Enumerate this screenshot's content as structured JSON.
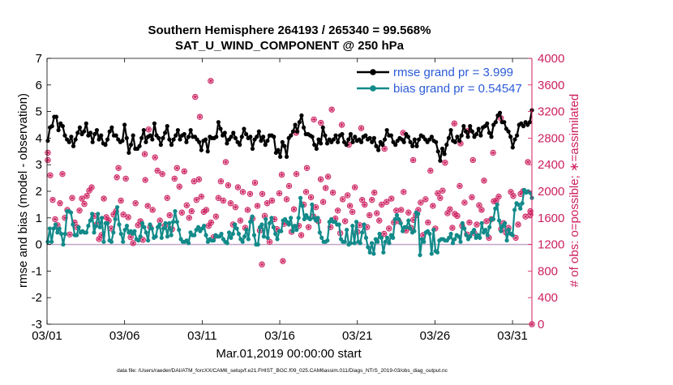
{
  "chart_data": {
    "type": "line",
    "title_line1": "Southern Hemisphere 264193 / 265340 = 99.568%",
    "title_line2": "SAT_U_WIND_COMPONENT @ 250 hPa",
    "xlabel": "Mar.01,2019 00:00:00 start",
    "ylabel_left": "rmse and bias (model - observation)",
    "ylabel_right": "# of obs: o=possible; ∗=assimilated",
    "footer": "data file: /Users/raeder/DAI/ATM_forcXX/CAM6_setup/f.e21.FHIST_BGC.f09_025.CAM6assim.011/Diags_NTrS_2019-03/obs_diag_output.nc",
    "xlim": [
      0,
      31.25
    ],
    "ylim_left": [
      -3,
      7
    ],
    "ylim_right": [
      0,
      4000
    ],
    "x_ticks": [
      {
        "value": 0,
        "label": "03/01"
      },
      {
        "value": 5,
        "label": "03/06"
      },
      {
        "value": 10,
        "label": "03/11"
      },
      {
        "value": 15,
        "label": "03/16"
      },
      {
        "value": 20,
        "label": "03/21"
      },
      {
        "value": 25,
        "label": "03/26"
      },
      {
        "value": 30,
        "label": "03/31"
      }
    ],
    "y_ticks_left": [
      "7",
      "6",
      "5",
      "4",
      "3",
      "2",
      "1",
      "0",
      "-1",
      "-2",
      "-3"
    ],
    "y_ticks_right": [
      "4000",
      "3600",
      "3200",
      "2800",
      "2400",
      "2000",
      "1600",
      "1200",
      "800",
      "400",
      "0"
    ],
    "zero_line": 0,
    "legend": [
      {
        "label": "rmse grand pr = 3.999",
        "series": "rmse"
      },
      {
        "label": "bias grand pr = 0.54547",
        "series": "bias"
      }
    ],
    "colors": {
      "rmse": "#000000",
      "bias": "#138a8a",
      "obs": "#cc1f5f",
      "right_axis": "#cc1f5f",
      "legend_text": "#2b5bd7",
      "zero_line": "#c0a6c8"
    },
    "series": [
      {
        "name": "rmse",
        "axis": "left",
        "values": [
          3.9,
          4.4,
          4.45,
          4.8,
          4.8,
          4.3,
          4.55,
          4.45,
          4.1,
          3.95,
          3.85,
          4.05,
          3.7,
          3.95,
          4.2,
          4.4,
          4.15,
          4.25,
          4.55,
          4.1,
          4.2,
          3.85,
          4.15,
          4.3,
          3.95,
          4.1,
          3.8,
          3.75,
          3.95,
          4.25,
          4.4,
          4.1,
          4.1,
          3.95,
          3.85,
          3.9,
          4.5,
          4.0,
          3.45,
          3.75,
          4.1,
          3.6,
          3.6,
          3.7,
          4.0,
          4.3,
          3.85,
          4.05,
          4.1,
          3.95,
          4.55,
          4.1,
          4.0,
          3.75,
          4.0,
          4.2,
          4.45,
          3.95,
          3.75,
          3.95,
          4.1,
          4.3,
          3.95,
          4.1,
          4.15,
          3.85,
          4.05,
          4.3,
          4.05,
          4.05,
          3.95,
          3.85,
          3.55,
          3.9,
          3.95,
          3.5,
          4.05,
          4.0,
          4.0,
          4.05,
          4.6,
          4.35,
          4.1,
          4.2,
          3.8,
          3.95,
          4.05,
          4.2,
          4.0,
          3.85,
          3.75,
          4.05,
          4.35,
          4.15,
          4.0,
          4.05,
          3.6,
          3.95,
          4.05,
          4.25,
          3.9,
          4.05,
          3.75,
          3.9,
          4.1,
          4.1,
          4.05,
          3.45,
          3.55,
          3.3,
          3.85,
          3.7,
          3.3,
          4.0,
          4.1,
          4.25,
          4.5,
          4.25,
          4.6,
          4.85,
          4.4,
          4.15,
          4.15,
          4.1,
          4.05,
          3.75,
          3.6,
          3.95,
          3.8,
          4.4,
          4.1,
          3.8,
          3.95,
          3.85,
          3.95,
          4.1,
          3.85,
          4.1,
          4.15,
          3.85,
          3.75,
          3.95,
          4.15,
          3.85,
          4.05,
          3.9,
          3.95,
          3.85,
          4.05,
          4.1,
          3.95,
          4.0,
          3.85,
          4.0,
          3.7,
          3.55,
          3.85,
          3.75,
          3.95,
          4.3,
          4.1,
          4.1,
          3.85,
          3.75,
          3.9,
          4.0,
          3.95,
          3.85,
          4.15,
          4.05,
          3.85,
          3.7,
          3.95,
          3.7,
          3.95,
          4.1,
          4.05,
          3.95,
          3.85,
          3.95,
          4.05,
          3.9,
          3.85,
          3.5,
          3.15,
          3.6,
          3.4,
          3.75,
          4.0,
          4.3,
          3.9,
          3.85,
          4.05,
          3.9,
          4.1,
          4.45,
          4.25,
          4.05,
          4.45,
          4.25,
          4.05,
          4.15,
          4.35,
          4.1,
          4.4,
          4.45,
          4.55,
          4.2,
          4.05,
          4.5,
          4.6,
          4.85,
          4.95,
          4.6,
          4.6,
          4.35,
          4.25,
          4.05,
          3.65,
          3.95,
          4.1,
          4.5,
          4.55,
          4.45,
          4.6,
          4.5,
          4.6,
          5.05
        ]
      },
      {
        "name": "bias",
        "axis": "left",
        "values": [
          0.1,
          0.6,
          0.1,
          0.6,
          0.75,
          0.45,
          0.6,
          0.4,
          0.0,
          0.4,
          1.25,
          1.25,
          1.2,
          0.75,
          0.35,
          0.35,
          0.65,
          0.45,
          0.5,
          0.45,
          0.45,
          0.7,
          0.9,
          1.15,
          0.45,
          0.7,
          1.15,
          0.65,
          1.0,
          0.1,
          0.8,
          0.8,
          0.15,
          0.1,
          0.45,
          0.95,
          1.4,
          0.75,
          0.4,
          0.1,
          0.55,
          0.7,
          0.45,
          0.5,
          0.4,
          0.5,
          0.2,
          0.15,
          0.3,
          0.8,
          0.65,
          0.45,
          0.15,
          0.75,
          0.6,
          0.25,
          0.3,
          0.65,
          0.75,
          0.25,
          0.6,
          0.8,
          0.3,
          0.8,
          0.35,
          0.85,
          1.25,
          0.85,
          0.55,
          0.2,
          0.1,
          0.1,
          0.15,
          0.05,
          0.45,
          0.35,
          0.35,
          0.55,
          0.65,
          0.5,
          0.6,
          0.7,
          0.35,
          0.1,
          0.2,
          0.15,
          0.15,
          0.35,
          0.3,
          0.3,
          0.4,
          0.2,
          0.1,
          0.05,
          0.45,
          0.25,
          0.4,
          0.75,
          0.6,
          0.4,
          0.2,
          0.1,
          0.3,
          0.55,
          0.2,
          0.85,
          1.05,
          0.35,
          0.0,
          0.0,
          0.65,
          0.75,
          0.3,
          0.95,
          0.25,
          0.8,
          1.0,
          0.65,
          0.4,
          0.2,
          0.5,
          0.5,
          0.9,
          0.95,
          0.85,
          0.75,
          1.0,
          0.5,
          0.7,
          0.55,
          1.0,
          1.75,
          1.45,
          0.95,
          1.1,
          1.0,
          0.95,
          1.5,
          1.0,
          0.9,
          1.0,
          0.45,
          0.25,
          0.1,
          0.1,
          0.15,
          0.85,
          0.95,
          0.85,
          0.85,
          0.75,
          0.75,
          0.2,
          0.1,
          0.1,
          0.55,
          0.0,
          0.05,
          0.7,
          0.05,
          0.85,
          0.1,
          0.05,
          0.45,
          0.75,
          0.25,
          -0.1,
          -0.3,
          0.05,
          -0.35,
          0.2,
          0.1,
          0.4,
          0.25,
          -0.3,
          0.1,
          0.25,
          0.05,
          0.35,
          0.25,
          0.95,
          1.1,
          0.95,
          0.8,
          0.5,
          0.65,
          0.65,
          0.9,
          0.6,
          0.45,
          0.5,
          1.2,
          1.15,
          -0.4,
          0.2,
          0.1,
          0.45,
          0.5,
          0.4,
          -0.35,
          0.55,
          -0.25,
          -0.3,
          0.15,
          0.2,
          0.2,
          0.15,
          0.15,
          0.25,
          0.4,
          0.05,
          0.2,
          0.35,
          0.3,
          0.1,
          0.8,
          0.6,
          0.35,
          0.2,
          0.3,
          0.45,
          0.55,
          0.25,
          0.35,
          0.25,
          0.8,
          0.45,
          0.55,
          0.35,
          0.65,
          0.95,
          0.95,
          1.35,
          1.5,
          0.9,
          0.5,
          0.7,
          0.8,
          0.15,
          0.55,
          0.4,
          0.35,
          1.3,
          1.55,
          1.5,
          1.35,
          1.55,
          2.05,
          1.95,
          2.0,
          1.95,
          1.75
        ]
      },
      {
        "name": "obs_possible",
        "axis": "right",
        "values": [
          2580,
          2240,
          1870,
          1580,
          1490,
          1820,
          2260,
          1600,
          1720,
          1350,
          1900,
          1530,
          1460,
          1710,
          1890,
          1810,
          1930,
          2010,
          2060,
          1630,
          1500,
          1280,
          1340,
          1890,
          1610,
          1560,
          1440,
          1650,
          1700,
          2350,
          1860,
          1650,
          2190,
          1610,
          1310,
          1220,
          1820,
          1490,
          1550,
          1270,
          2170,
          1780,
          1460,
          1720,
          2510,
          2310,
          1560,
          2260,
          1480,
          1900,
          1640,
          1430,
          2190,
          2350,
          2070,
          1680,
          2300,
          1790,
          1600,
          1700,
          2150,
          1870,
          2180,
          1920,
          1690,
          1720,
          1480,
          1530,
          1310,
          1620,
          1900,
          2150,
          1860,
          2440,
          2090,
          1820,
          1500,
          1760,
          2060,
          1560,
          1990,
          1450,
          1720,
          1960,
          1590,
          2130,
          1780,
          1410,
          1960,
          1630,
          1820,
          1240,
          1860,
          1580,
          1430,
          1970,
          2250,
          1510,
          1880,
          2080,
          1390,
          1730,
          2260,
          1480,
          1340,
          1800,
          1990,
          1460,
          1910,
          1620,
          1760,
          1550,
          2180,
          1840,
          2050,
          2220,
          1460,
          1980,
          1590,
          1710,
          1370,
          1880,
          1550,
          1940,
          1780,
          1690,
          2060,
          1390,
          1490,
          1870,
          1800,
          1460,
          1640,
          1870,
          1980,
          1670,
          1560,
          1800,
          1360,
          1840,
          1440,
          1890,
          1530,
          1710,
          1550,
          1720,
          1990,
          1410,
          1680,
          1450,
          1570,
          1640,
          1720,
          1830,
          1340,
          1880,
          1530,
          2310,
          1780,
          1440,
          1970,
          1900,
          2010,
          2430,
          1670,
          1730,
          1450,
          1660,
          1630,
          2080,
          1480,
          1830,
          1350,
          1530,
          1910,
          1370,
          1500,
          1790,
          1720,
          2160,
          1550,
          1300,
          1580,
          1850,
          1860,
          1920,
          1430,
          1520,
          1380,
          1450,
          1990,
          1930,
          1300,
          1500,
          1960,
          2000,
          1620,
          2440,
          1700
        ]
      },
      {
        "name": "obs_assimilated",
        "axis": "right",
        "values": [
          2580,
          2240,
          1870,
          1580,
          1490,
          1820,
          2260,
          1600,
          1720,
          1350,
          1900,
          1530,
          1460,
          1710,
          1890,
          1810,
          1930,
          2010,
          2060,
          1630,
          1500,
          1280,
          1340,
          1890,
          1610,
          1560,
          1440,
          1650,
          1700,
          2350,
          1860,
          1650,
          2190,
          1610,
          1310,
          1220,
          1820,
          1490,
          1550,
          1270,
          2170,
          1780,
          1460,
          1720,
          2510,
          2310,
          1560,
          2260,
          1480,
          1900,
          1640,
          1430,
          2190,
          2350,
          2070,
          1680,
          2300,
          1790,
          1600,
          1700,
          2150,
          1870,
          2180,
          1920,
          1690,
          1720,
          1480,
          1530,
          1310,
          1620,
          1900,
          2150,
          1860,
          2440,
          2090,
          1820,
          1500,
          1760,
          2060,
          1560,
          1990,
          1450,
          1720,
          1960,
          1590,
          2130,
          1780,
          1410,
          1960,
          1630,
          1820,
          1240,
          1860,
          1580,
          1430,
          1970,
          2250,
          1510,
          1880,
          2080,
          1390,
          1730,
          2260,
          1480,
          1340,
          1800,
          1990,
          1460,
          1910,
          1620,
          1760,
          1550,
          2180,
          1840,
          2050,
          2220,
          1460,
          1980,
          1590,
          1710,
          1370,
          1880,
          1550,
          1940,
          1780,
          1690,
          2060,
          1390,
          1490,
          1870,
          1800,
          1460,
          1640,
          1870,
          1980,
          1670,
          1560,
          1800,
          1360,
          1840,
          1440,
          1890,
          1530,
          1710,
          1550,
          1720,
          1990,
          1410,
          1680,
          1450,
          1570,
          1640,
          1720,
          1830,
          1340,
          1880,
          1530,
          2310,
          1780,
          1440,
          1970,
          1900,
          2010,
          2430,
          1670,
          1730,
          1450,
          1660,
          1630,
          2080,
          1480,
          1830,
          1350,
          1530,
          1910,
          1370,
          1500,
          1790,
          1720,
          2160,
          1550,
          1300,
          1580,
          1850,
          1860,
          1920,
          1430,
          1520,
          1380,
          1450,
          1990,
          1930,
          1300,
          1500,
          1960,
          2000,
          1620,
          2440,
          1700
        ]
      }
    ],
    "outlier_obs": [
      {
        "x": 0.05,
        "y": 2470
      },
      {
        "x": 4.5,
        "y": 2210
      },
      {
        "x": 6.3,
        "y": 2560
      },
      {
        "x": 6.55,
        "y": 2930
      },
      {
        "x": 9.55,
        "y": 3420
      },
      {
        "x": 9.85,
        "y": 3120
      },
      {
        "x": 10.55,
        "y": 3660
      },
      {
        "x": 16.05,
        "y": 2880
      },
      {
        "x": 16.75,
        "y": 2350
      },
      {
        "x": 17.2,
        "y": 3080
      },
      {
        "x": 17.65,
        "y": 3030
      },
      {
        "x": 18.35,
        "y": 3230
      },
      {
        "x": 19.0,
        "y": 3000
      },
      {
        "x": 19.45,
        "y": 2700
      },
      {
        "x": 20.25,
        "y": 2950
      },
      {
        "x": 21.75,
        "y": 2640
      },
      {
        "x": 22.95,
        "y": 2880
      },
      {
        "x": 23.6,
        "y": 2470
      },
      {
        "x": 26.25,
        "y": 3020
      },
      {
        "x": 26.65,
        "y": 2720
      },
      {
        "x": 27.15,
        "y": 2910
      },
      {
        "x": 27.45,
        "y": 2470
      },
      {
        "x": 28.75,
        "y": 2580
      },
      {
        "x": 29.25,
        "y": 3100
      },
      {
        "x": 29.6,
        "y": 3700
      },
      {
        "x": 15.2,
        "y": 950
      },
      {
        "x": 13.85,
        "y": 900
      },
      {
        "x": 31.15,
        "y": 1650
      },
      {
        "x": 31.25,
        "y": 0
      }
    ]
  }
}
